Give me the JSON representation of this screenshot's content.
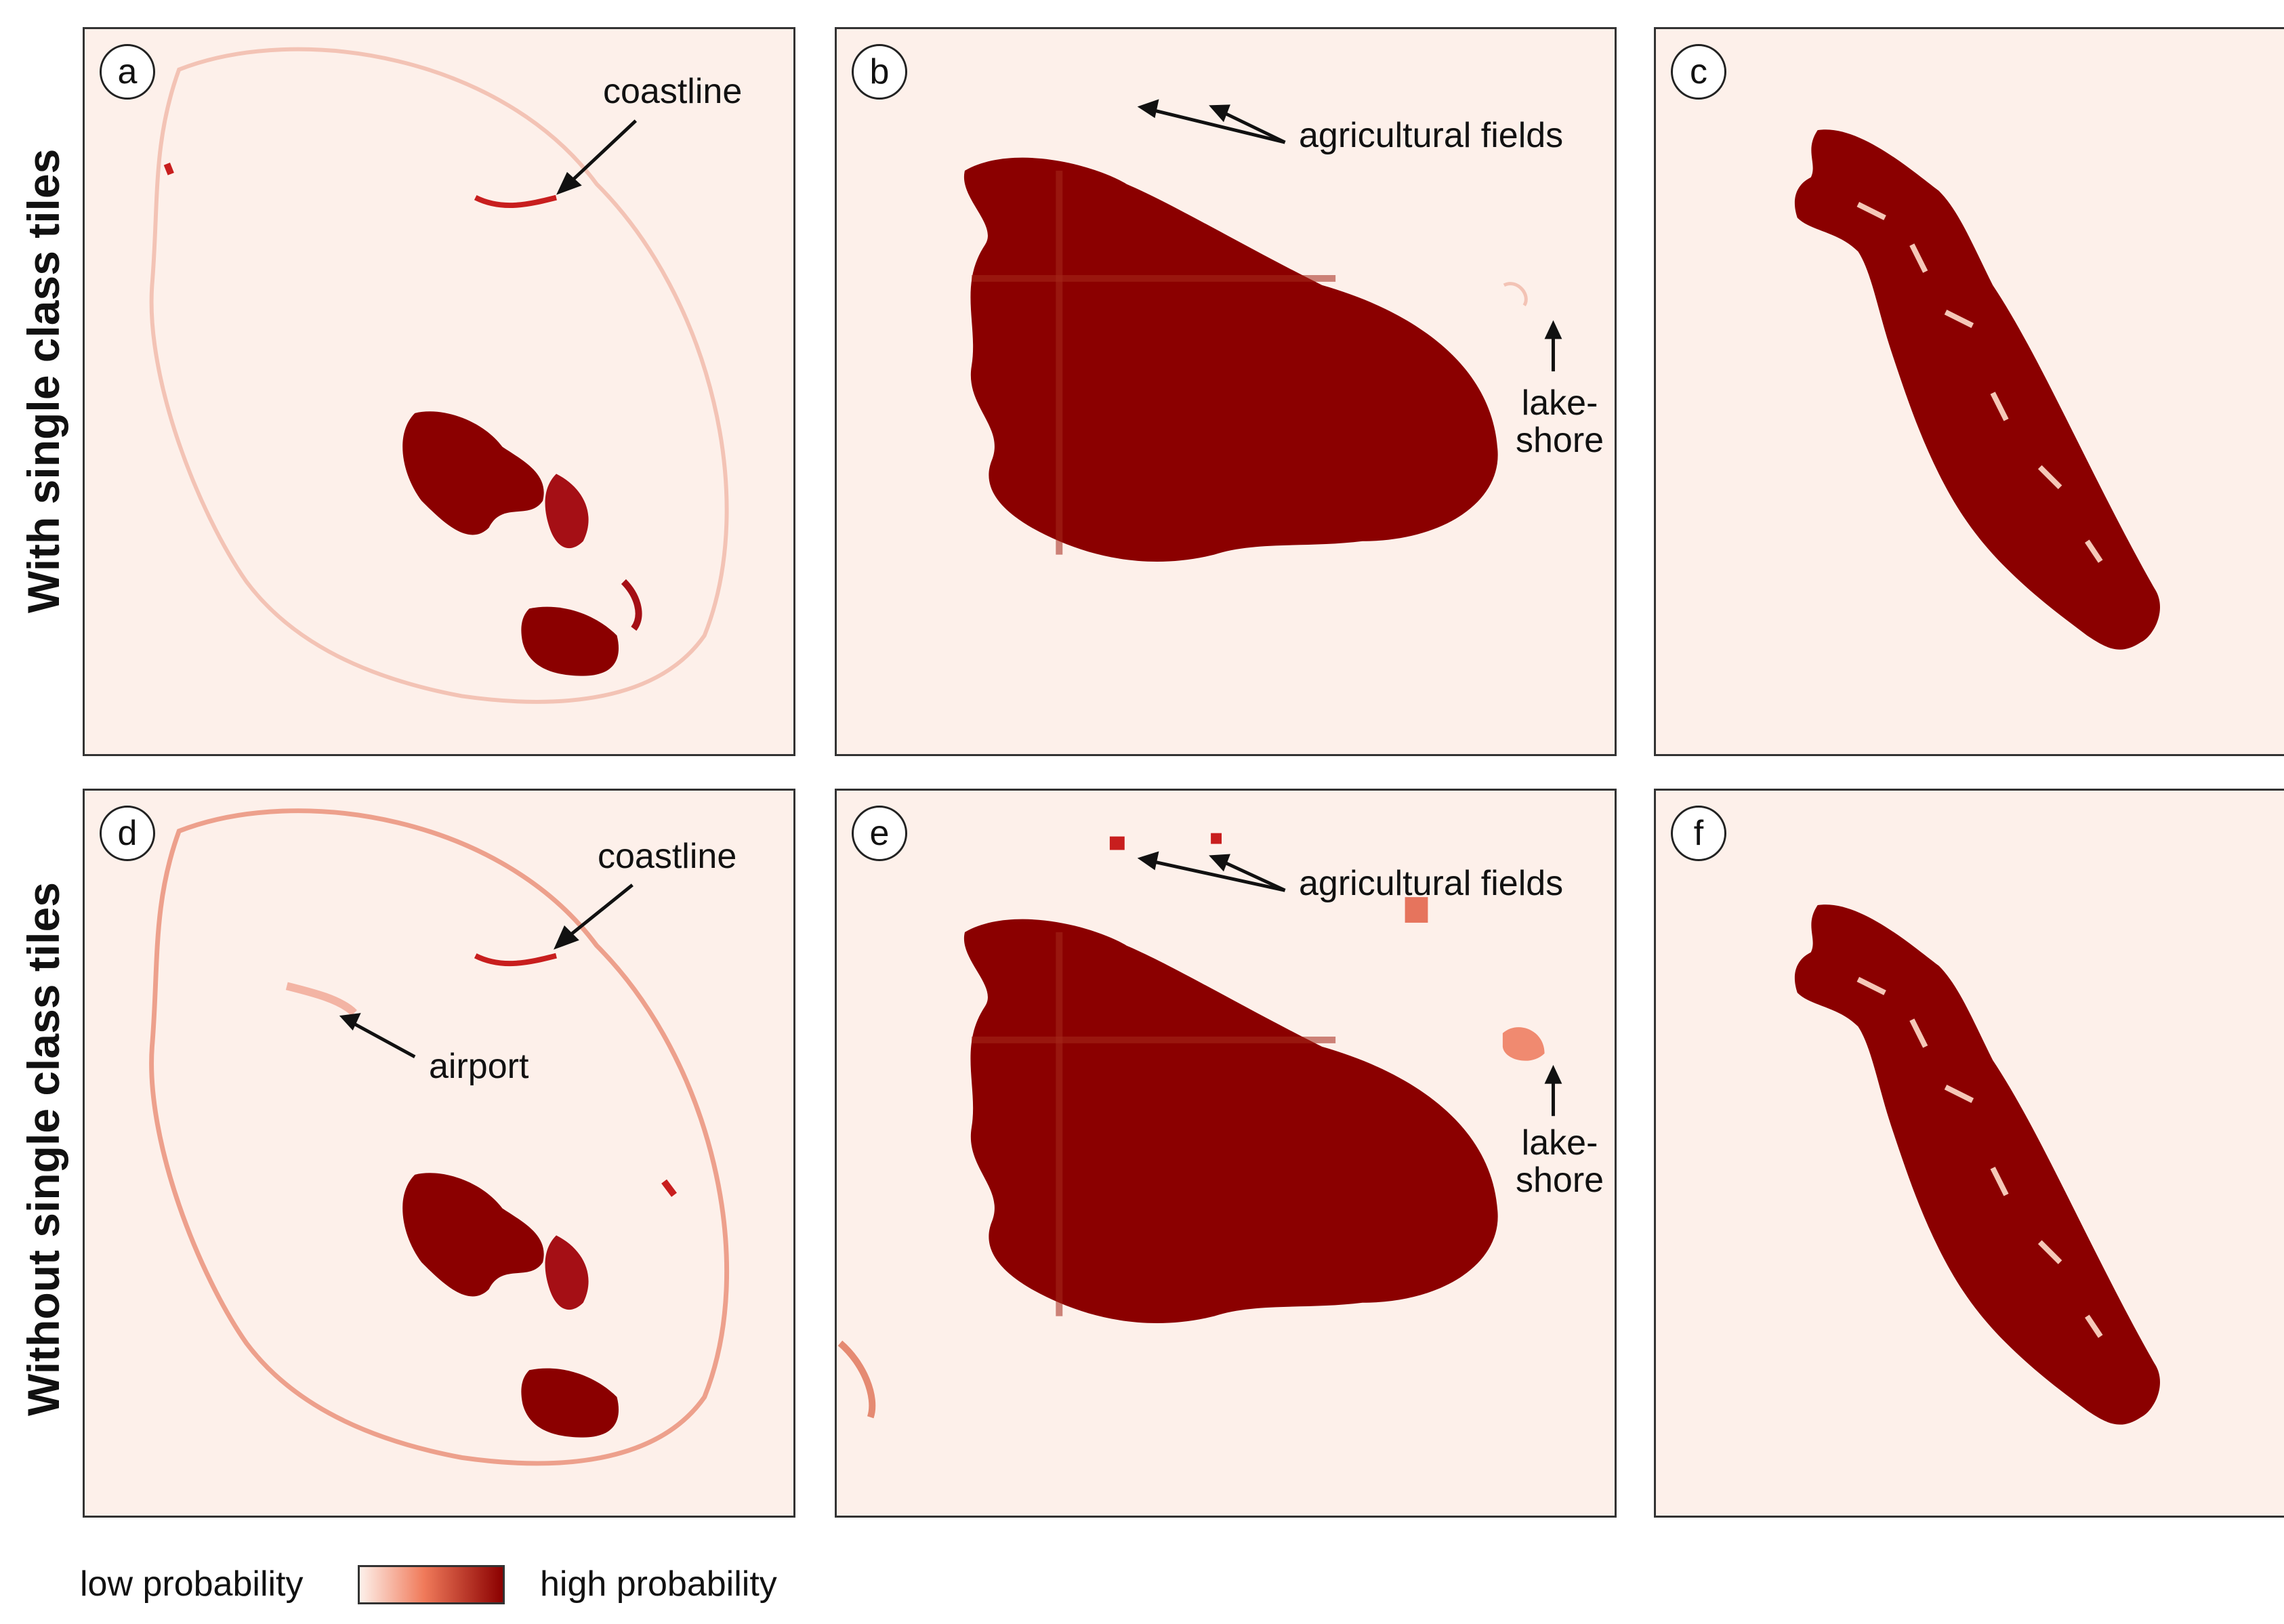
{
  "rows": {
    "top_title": "With single class tiles",
    "bottom_title": "Without single class tiles"
  },
  "panels": {
    "a": {
      "label": "a",
      "annotations": {
        "coastline": "coastline"
      }
    },
    "b": {
      "label": "b",
      "annotations": {
        "agricultural_fields": "agricultural fields",
        "lakeshore_line1": "lake-",
        "lakeshore_line2": "shore"
      }
    },
    "c": {
      "label": "c"
    },
    "d": {
      "label": "d",
      "annotations": {
        "coastline": "coastline",
        "airport": "airport"
      }
    },
    "e": {
      "label": "e",
      "annotations": {
        "agricultural_fields": "agricultural fields",
        "lakeshore_line1": "lake-",
        "lakeshore_line2": "shore"
      }
    },
    "f": {
      "label": "f"
    }
  },
  "legend": {
    "low_label": "low probability",
    "high_label": "high probability",
    "color_low": "#fdf0ea",
    "color_mid": "#f05a3a",
    "color_high": "#8b0000"
  },
  "colors": {
    "background": "#fdf0ea",
    "high": "#8b0000",
    "medium": "#c81e1e",
    "low_trace": "#f3b4a4"
  }
}
